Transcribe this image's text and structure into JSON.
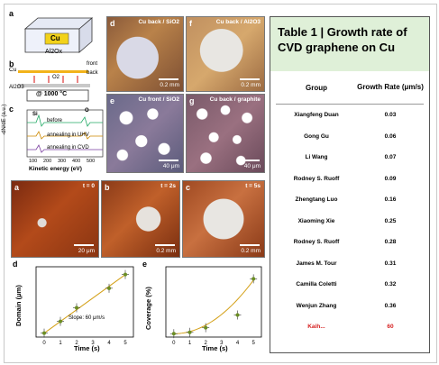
{
  "panel_a": {
    "letter": "a",
    "cu_label": "Cu",
    "substrate_label": "Al2Ox"
  },
  "panel_b": {
    "letter": "b",
    "cu_label": "Cu",
    "front_label": "front",
    "back_label": "back",
    "o2_label": "O2",
    "substrate_label": "Al2O3",
    "temp_label": "@ 1000 °C"
  },
  "panel_c": {
    "letter": "c",
    "ylabel": "-dN/dE (a.u.)",
    "xlabel": "Kinetic energy (eV)",
    "ticks": [
      "100",
      "200",
      "300",
      "400",
      "500"
    ],
    "si_label": "Si",
    "o_label": "O",
    "traces": [
      "before",
      "annealing in UHV",
      "annealing in CVD"
    ]
  },
  "micrographs_top": [
    {
      "letter": "d",
      "caption": "Cu back / SiO2",
      "scale": "0.2 mm"
    },
    {
      "letter": "f",
      "caption": "Cu back / Al2O3",
      "scale": "0.2 mm"
    },
    {
      "letter": "e",
      "caption": "Cu front / SiO2",
      "scale": "40 μm"
    },
    {
      "letter": "g",
      "caption": "Cu back / graphite",
      "scale": "40 μm"
    }
  ],
  "micrographs_mid": [
    {
      "letter": "a",
      "time": "t = 0",
      "scale": "20 μm"
    },
    {
      "letter": "b",
      "time": "t = 2s",
      "scale": "0.2 mm"
    },
    {
      "letter": "c",
      "time": "t = 5s",
      "scale": "0.2 mm"
    }
  ],
  "plot_d": {
    "letter": "d",
    "ylabel": "Domain (μm)",
    "xlabel": "Time (s)",
    "annotation": "Slope: 60 μm/s"
  },
  "plot_e": {
    "letter": "e",
    "ylabel": "Coverage (%)",
    "xlabel": "Time (s)"
  },
  "table": {
    "title": "Table 1 |  Growth rate of CVD graphene on Cu",
    "col_group": "Group",
    "col_rate": "Growth Rate (μm/s)",
    "rows": [
      {
        "group": "Xiangfeng Duan",
        "rate": "0.03"
      },
      {
        "group": "Gong Gu",
        "rate": "0.06"
      },
      {
        "group": "Li Wang",
        "rate": "0.07"
      },
      {
        "group": "Rodney S. Ruoff",
        "rate": "0.09"
      },
      {
        "group": "Zhengtang Luo",
        "rate": "0.16"
      },
      {
        "group": "Xiaoming Xie",
        "rate": "0.25"
      },
      {
        "group": "Rodney S. Ruoff",
        "rate": "0.28"
      },
      {
        "group": "James M. Tour",
        "rate": "0.31"
      },
      {
        "group": "Camilla Coletti",
        "rate": "0.32"
      },
      {
        "group": "Wenjun Zhang",
        "rate": "0.36"
      },
      {
        "group": "Kaih...",
        "rate": "60"
      }
    ]
  },
  "chart_data": [
    {
      "type": "scatter",
      "title": "",
      "xlabel": "Time (s)",
      "ylabel": "Domain (μm)",
      "xlim": [
        -0.5,
        5.5
      ],
      "ylim": [
        -20,
        340
      ],
      "x": [
        0,
        1,
        2,
        4,
        5
      ],
      "y": [
        0,
        60,
        130,
        230,
        300
      ],
      "fit": "linear",
      "annotation": "Slope: 60 μm/s"
    },
    {
      "type": "scatter",
      "title": "",
      "xlabel": "Time (s)",
      "ylabel": "Coverage (%)",
      "xlim": [
        -0.5,
        5.5
      ],
      "ylim": [
        -5,
        100
      ],
      "x": [
        0,
        1,
        2,
        4,
        5
      ],
      "y": [
        0,
        2,
        9,
        28,
        82
      ],
      "fit": "quadratic"
    }
  ],
  "colors": {
    "table_header_bg": "#dff0d8",
    "highlight": "#d62020",
    "fit_line": "#d4a017",
    "point": "#6b8e23"
  }
}
